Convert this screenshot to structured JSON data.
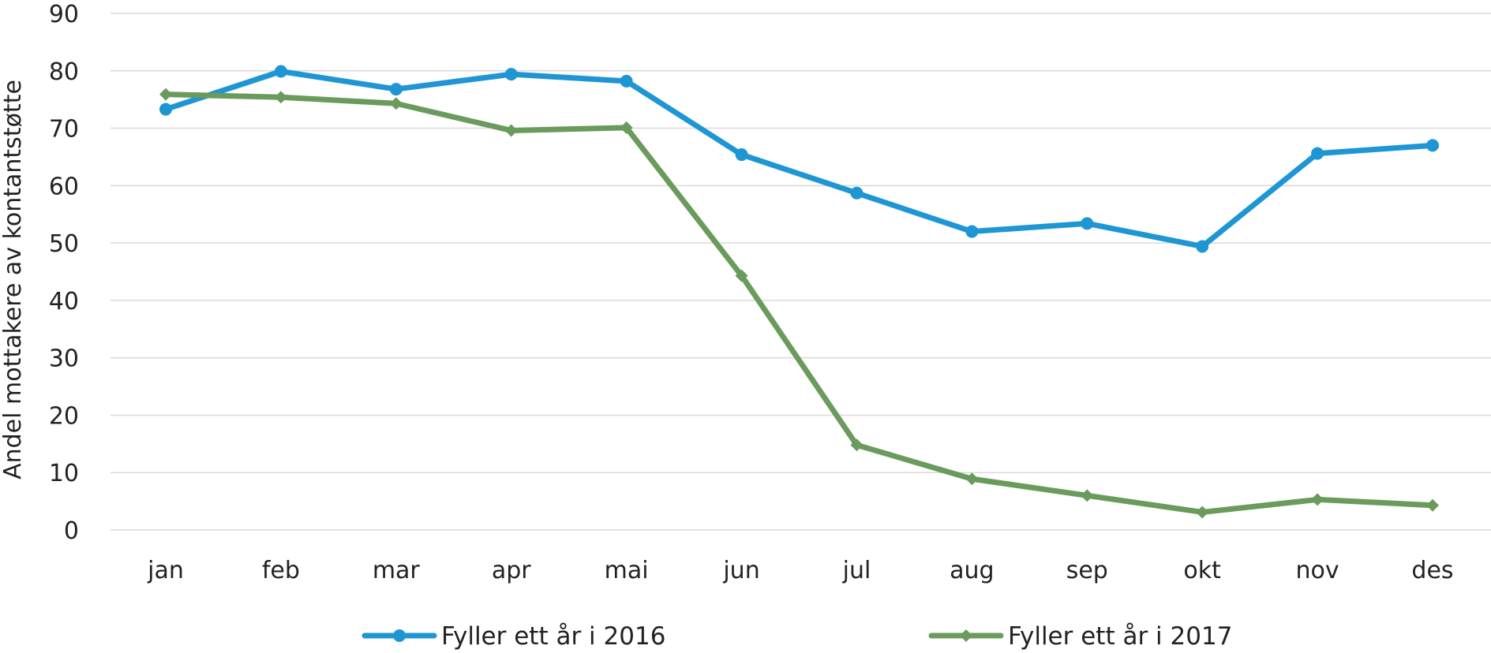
{
  "chart_data": {
    "type": "line",
    "title": "",
    "xlabel": "",
    "ylabel": "Andel mottakere av kontantstøtte",
    "categories": [
      "jan",
      "feb",
      "mar",
      "apr",
      "mai",
      "jun",
      "jul",
      "aug",
      "sep",
      "okt",
      "nov",
      "des"
    ],
    "ylim": [
      0,
      90
    ],
    "yticks": [
      0,
      10,
      20,
      30,
      40,
      50,
      60,
      70,
      80,
      90
    ],
    "grid": true,
    "legend_position": "bottom",
    "series": [
      {
        "name": "Fyller ett år i 2016",
        "color": "#1f96d4",
        "marker": "circle",
        "values": [
          73.3,
          79.9,
          76.8,
          79.4,
          78.2,
          65.4,
          58.7,
          52.0,
          53.4,
          49.4,
          65.6,
          67.0
        ]
      },
      {
        "name": "Fyller ett år i 2017",
        "color": "#6a9a5c",
        "marker": "diamond",
        "values": [
          75.9,
          75.4,
          74.3,
          69.6,
          70.1,
          44.3,
          14.8,
          8.9,
          6.0,
          3.1,
          5.3,
          4.3
        ]
      }
    ]
  }
}
